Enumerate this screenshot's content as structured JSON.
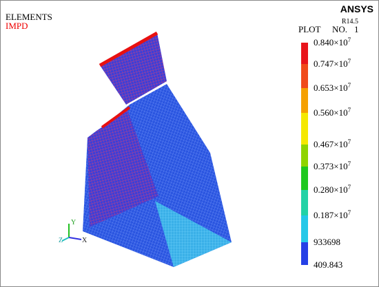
{
  "header": {
    "element_label": "ELEMENTS",
    "result_label": "IMPD",
    "brand": "ANSYS",
    "version": "R14.5",
    "plot_label": "PLOT",
    "plot_no_label": "NO.",
    "plot_no": "1"
  },
  "legend": {
    "labels": [
      {
        "base": "0.840×10",
        "exp": "7"
      },
      {
        "base": "0.747×10",
        "exp": "7"
      },
      {
        "base": "0.653×10",
        "exp": "7"
      },
      {
        "base": "0.560×10",
        "exp": "7"
      },
      {
        "base": "0.467×10",
        "exp": "7"
      },
      {
        "base": "0.373×10",
        "exp": "7"
      },
      {
        "base": "0.280×10",
        "exp": "7"
      },
      {
        "base": "0.187×10",
        "exp": "7"
      },
      {
        "base": "933698"
      },
      {
        "base": "409.843"
      }
    ],
    "colors": [
      "#e8141b",
      "#f04a1a",
      "#f5a000",
      "#f5e800",
      "#8fd400",
      "#1fc81f",
      "#23d2a6",
      "#25c8e8",
      "#2540e6"
    ]
  },
  "axes": {
    "y": "Y",
    "z": "Z",
    "x": "X"
  }
}
